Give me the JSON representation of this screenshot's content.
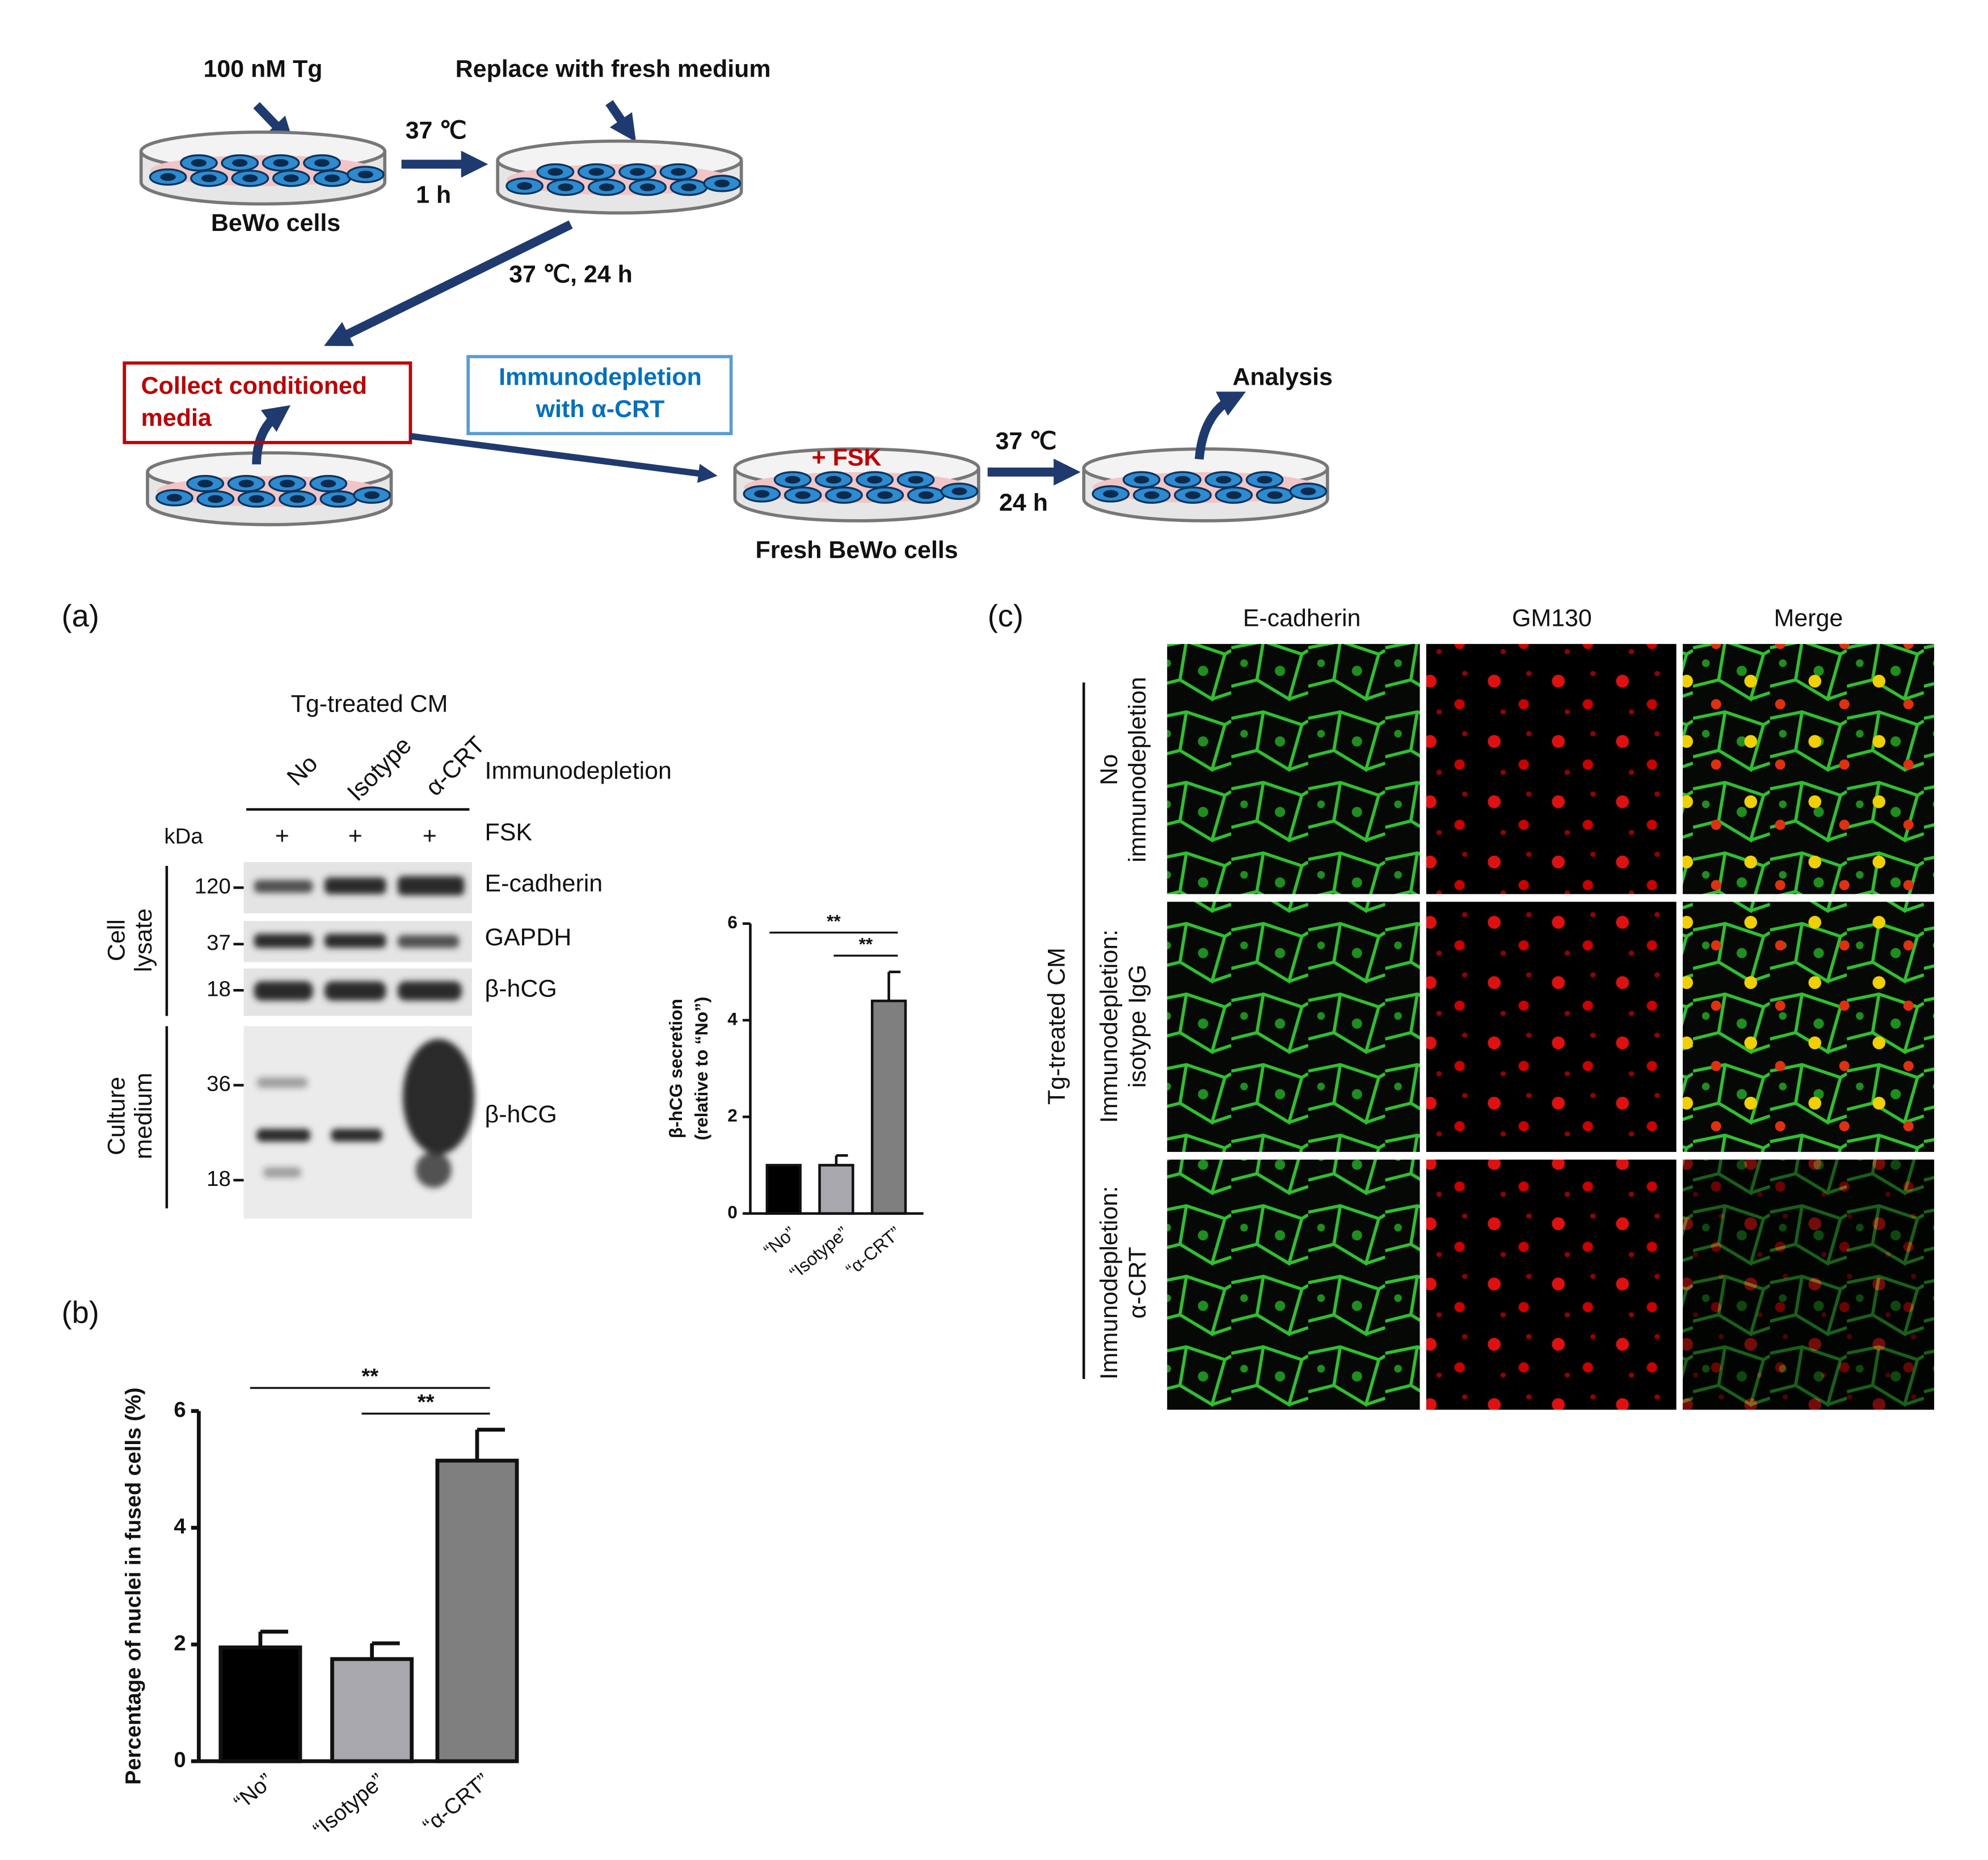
{
  "scheme": {
    "tg": "100 nM Tg",
    "replace": "Replace with fresh medium",
    "temp1": "37 ℃",
    "time1": "1 h",
    "bewo": "BeWo cells",
    "temp_time2": "37 ℃, 24 h",
    "collect": [
      "Collect conditioned",
      "media"
    ],
    "immunodepletion": [
      "Immunodepletion",
      "with α-CRT"
    ],
    "fsk": "+ FSK",
    "temp3": "37 ℃",
    "time3": "24 h",
    "fresh": "Fresh BeWo cells",
    "analysis": "Analysis"
  },
  "panel_a": {
    "label": "(a)",
    "group": "Tg-treated CM",
    "lanes": [
      "No",
      "Isotype",
      "α-CRT"
    ],
    "lane_heading": "Immunodepletion",
    "kda": "kDa",
    "fsk_signs": [
      "+",
      "+",
      "+"
    ],
    "fsk": "FSK",
    "markers": [
      "120",
      "37",
      "18",
      "36",
      "18"
    ],
    "rows": [
      "E-cadherin",
      "GAPDH",
      "β-hCG",
      "β-hCG"
    ],
    "cell_lysate": [
      "Cell",
      "lysate"
    ],
    "culture_medium": [
      "Culture",
      "medium"
    ]
  },
  "panel_b": {
    "label": "(b)"
  },
  "chart_data": [
    {
      "type": "bar",
      "y_label": [
        "β-hCG secretion",
        "(relative to “No”)"
      ],
      "categories": [
        "“No”",
        "“Isotype”",
        "“α-CRT”"
      ],
      "values": [
        1,
        1,
        4.4
      ],
      "errors": [
        0,
        0.2,
        0.6
      ],
      "colors": [
        "#000000",
        "#a7a7ad",
        "#7f7f7f"
      ],
      "ylim": [
        0,
        6
      ],
      "yticks": [
        0,
        2,
        4,
        6
      ],
      "annotations": [
        "**",
        "**"
      ]
    },
    {
      "type": "bar",
      "y_label": [
        "Percentage of nuclei in fused cells (%)"
      ],
      "categories": [
        "“No”",
        "“Isotype”",
        "“α-CRT”"
      ],
      "values": [
        1.95,
        1.75,
        5.15
      ],
      "errors": [
        0.27,
        0.27,
        0.53
      ],
      "colors": [
        "#000000",
        "#a7a7ad",
        "#7f7f7f"
      ],
      "ylim": [
        0,
        6
      ],
      "yticks": [
        0,
        2,
        4,
        6
      ],
      "annotations": [
        "**",
        "**"
      ]
    }
  ],
  "panel_c": {
    "label": "(c)",
    "columns": [
      "E-cadherin",
      "GM130",
      "Merge"
    ],
    "rows": [
      [
        "No",
        "immunodepletion"
      ],
      [
        "Immunodepletion:",
        "isotype IgG"
      ],
      [
        "Immunodepletion:",
        "α-CRT"
      ]
    ],
    "group": "Tg-treated CM"
  }
}
